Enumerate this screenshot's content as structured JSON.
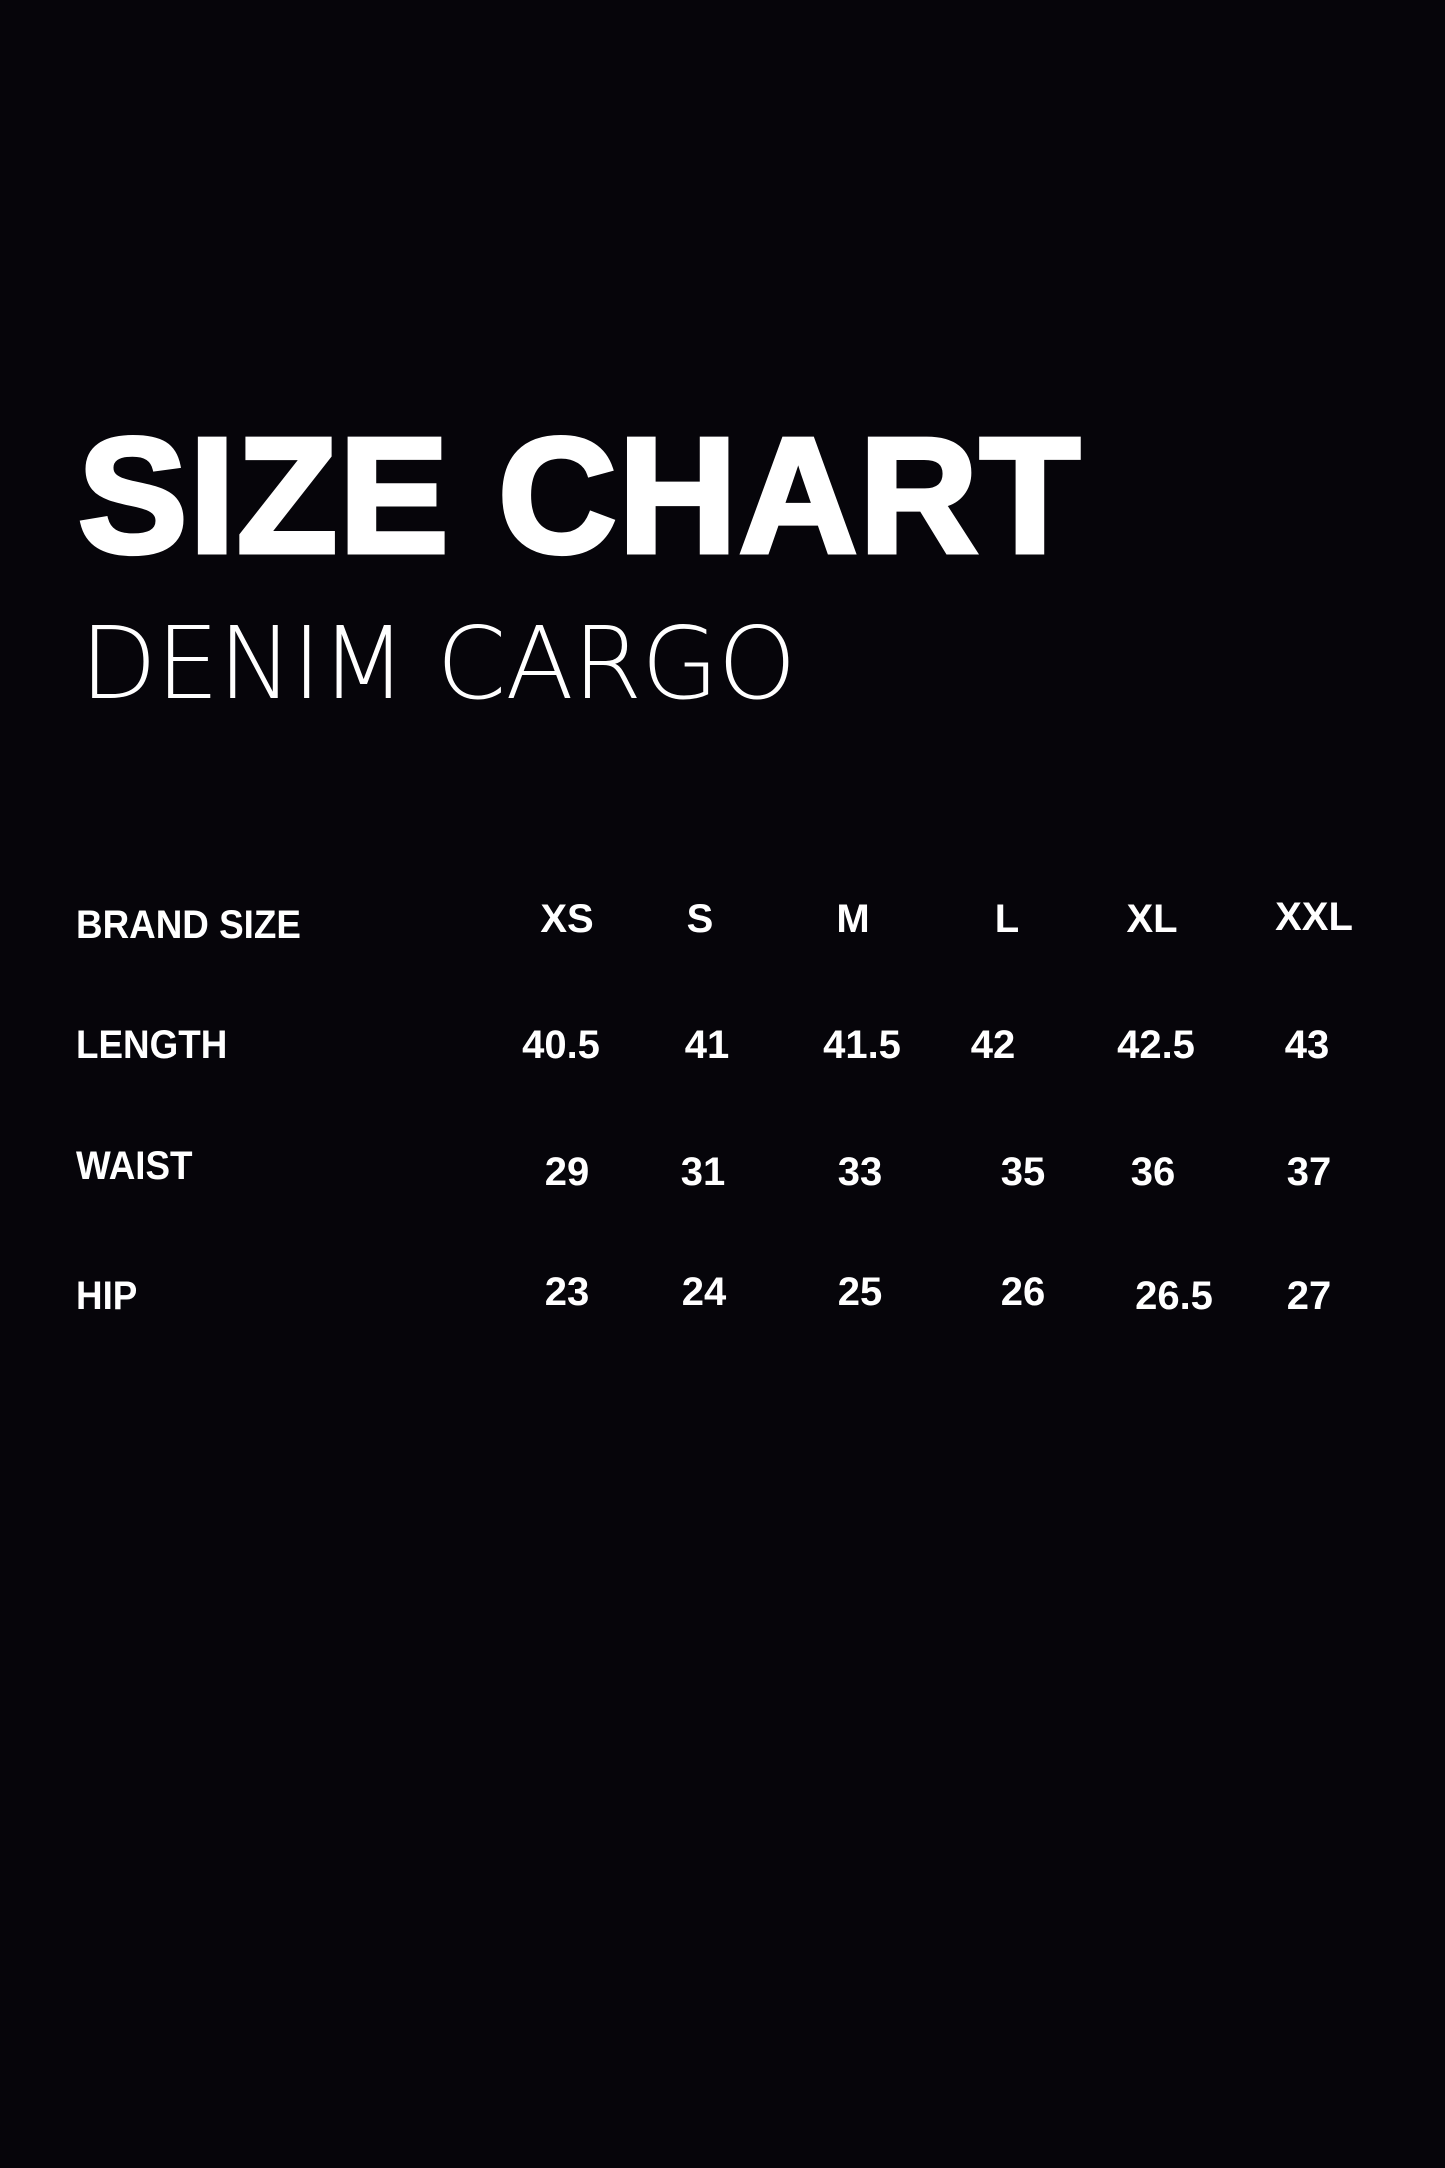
{
  "title": "SIZE CHART",
  "subtitle": "DENIM CARGO",
  "table": {
    "header": {
      "label": "BRAND SIZE",
      "sizes": [
        "XS",
        "S",
        "M",
        "L",
        "XL",
        "XXL"
      ]
    },
    "rows": [
      {
        "label": "LENGTH",
        "values": [
          "40.5",
          "41",
          "41.5",
          "42",
          "42.5",
          "43"
        ]
      },
      {
        "label": "WAIST",
        "values": [
          "29",
          "31",
          "33",
          "35",
          "36",
          "37"
        ]
      },
      {
        "label": "HIP",
        "values": [
          "23",
          "24",
          "25",
          "26",
          "26.5",
          "27"
        ]
      }
    ]
  },
  "colors": {
    "background": "#06050a",
    "text": "#ffffff"
  }
}
